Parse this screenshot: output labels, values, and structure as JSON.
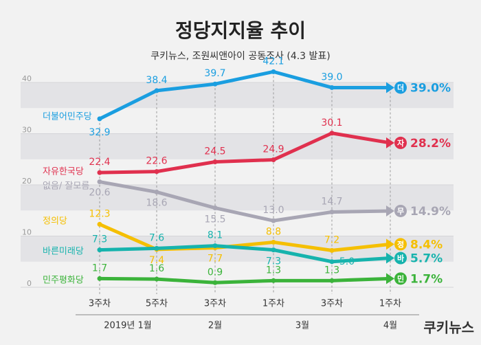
{
  "chart_data": {
    "type": "line",
    "title": "정당지지율 추이",
    "subtitle": "쿠키뉴스, 조원씨앤아이 공동조사 (4.3 발표)",
    "categories": [
      "3주차",
      "5주차",
      "3주차",
      "1주차",
      "3주차",
      "1주차"
    ],
    "month_labels": [
      "2019년 1월",
      "2월",
      "3월",
      "4월"
    ],
    "ylim": [
      0,
      40
    ],
    "yticks": [
      0,
      10,
      20,
      30,
      40
    ],
    "logo": "쿠키뉴스",
    "series": [
      {
        "name": "더불어민주당",
        "badge": "더",
        "color": "#1a9ee0",
        "values": [
          32.9,
          38.4,
          39.7,
          42.1,
          39.0,
          39.0
        ],
        "value_labels": [
          "32.9",
          "38.4",
          "39.7",
          "42.1",
          "39.0",
          "39.0%"
        ]
      },
      {
        "name": "자유한국당",
        "badge": "자",
        "color": "#e0304e",
        "values": [
          22.4,
          22.6,
          24.5,
          24.9,
          30.1,
          28.2
        ],
        "value_labels": [
          "22.4",
          "22.6",
          "24.5",
          "24.9",
          "30.1",
          "28.2%"
        ]
      },
      {
        "name": "없음/ 잘모름",
        "badge": "무",
        "color": "#a8a6b4",
        "values": [
          20.6,
          18.6,
          15.5,
          13.0,
          14.7,
          14.9
        ],
        "value_labels": [
          "20.6",
          "18.6",
          "15.5",
          "13.0",
          "14.7",
          "14.9%"
        ]
      },
      {
        "name": "정의당",
        "badge": "정",
        "color": "#f5bf00",
        "values": [
          12.3,
          7.4,
          7.7,
          8.8,
          7.2,
          8.4
        ],
        "value_labels": [
          "12.3",
          "7.4",
          "7.7",
          "8.8",
          "7.2",
          "8.4%"
        ]
      },
      {
        "name": "바른미래당",
        "badge": "바",
        "color": "#16b3ad",
        "values": [
          7.3,
          7.6,
          8.1,
          7.3,
          5.0,
          5.7
        ],
        "value_labels": [
          "7.3",
          "7.6",
          "8.1",
          "7.3",
          "5.0",
          "5.7%"
        ]
      },
      {
        "name": "민주평화당",
        "badge": "민",
        "color": "#3bb33a",
        "values": [
          1.7,
          1.6,
          0.9,
          1.3,
          1.3,
          1.7
        ],
        "value_labels": [
          "1.7",
          "1.6",
          "0.9",
          "1.3",
          "1.3",
          "1.7%"
        ]
      }
    ]
  }
}
